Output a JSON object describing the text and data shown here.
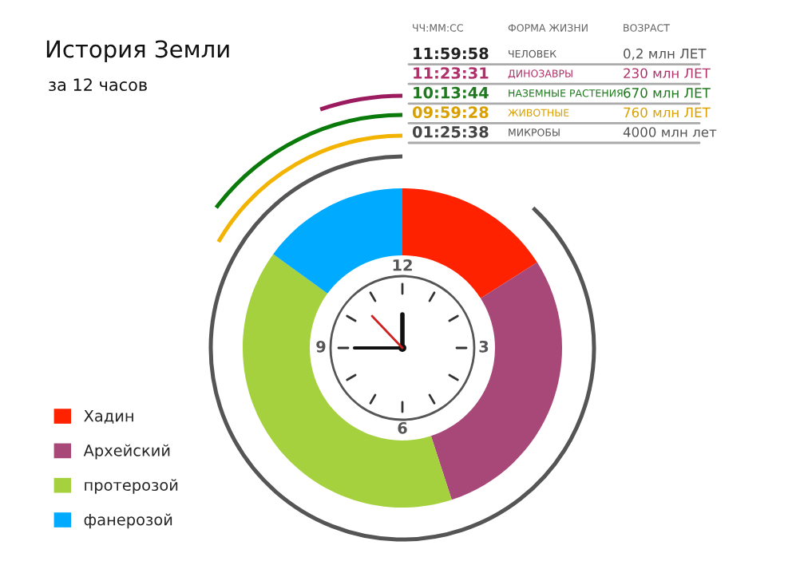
{
  "chart_data": {
    "type": "donut",
    "title": "История Земли",
    "subtitle": "за 12 часов",
    "categories": [
      "Хадин",
      "Архейский",
      "протерозой",
      "фанерозой"
    ],
    "values": [
      16,
      29,
      40,
      15
    ],
    "colors": [
      "#ff2200",
      "#a84878",
      "#a6d13e",
      "#00aaff"
    ],
    "legend": "bottom left",
    "annotations": [
      "ЧЧ:ММ:СС",
      "ФОРМА ЖИЗНИ",
      "ВОЗРАСТ",
      "11:59:58",
      "ЧЕЛОВЕК",
      "0,2 млн ЛЕТ",
      "11:23:31",
      "ДИНОЗАВРЫ",
      "230 млн ЛЕТ",
      "10:13:44",
      "НАЗЕМНЫЕ РАСТЕНИЯ",
      "670 млн ЛЕТ",
      "09:59:28",
      "ЖИВОТНЫЕ",
      "760 млн ЛЕТ",
      "01:25:38",
      "МИКРОБЫ",
      "4000 млн лет",
      "12",
      "3",
      "6",
      "9"
    ]
  }
}
